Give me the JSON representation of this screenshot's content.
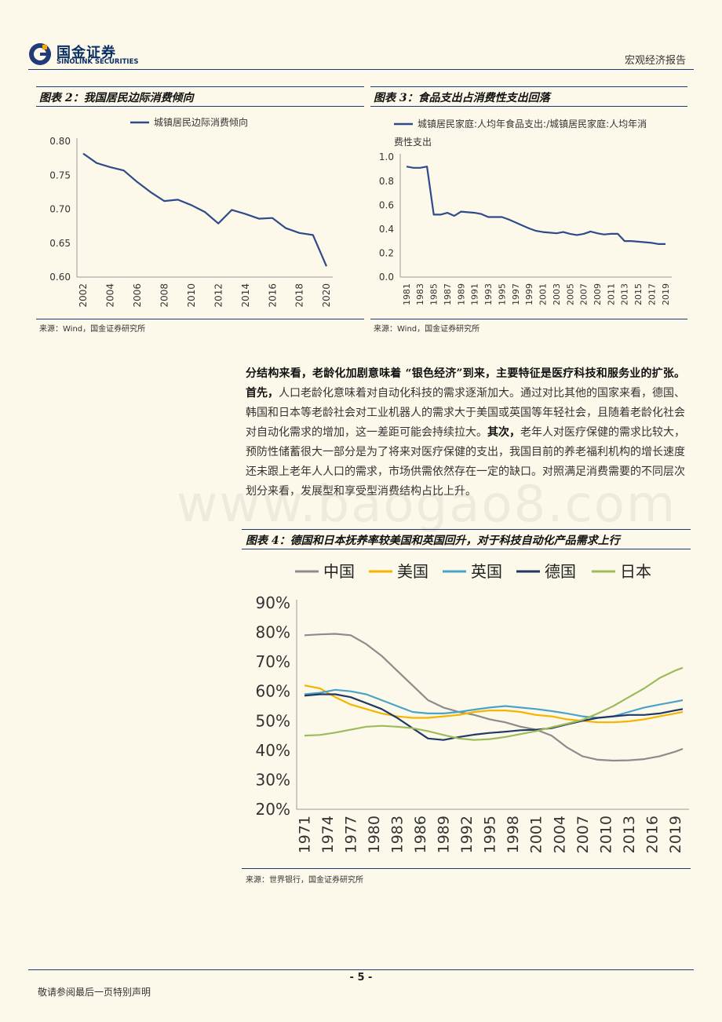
{
  "header": {
    "logo_cn": "国金证券",
    "logo_en": "SINOLINK SECURITIES",
    "report_type": "宏观经济报告"
  },
  "figures": {
    "fig2": {
      "title": "图表 2：我国居民边际消费倾向",
      "source": "来源：Wind，国金证券研究所"
    },
    "fig3": {
      "title": "图表 3：食品支出占消费性支出回落",
      "source": "来源：Wind，国金证券研究所"
    },
    "fig4": {
      "title": "图表 4：德国和日本抚养率较美国和英国回升，对于科技自动化产品需求上行",
      "source": "来源：世界银行，国金证券研究所"
    }
  },
  "body": {
    "b1": "分结构来看，老龄化加剧意味着 “银色经济”到来，主要特征是医疗科技和服务业的扩张。",
    "b2": "首先，",
    "t1": "人口老龄化意味着对自动化科技的需求逐渐加大。通过对比其他的国家来看，德国、韩国和日本等老龄社会对工业机器人的需求大于美国或英国等年轻社会，且随着老龄化社会对自动化需求的增加，这一差距可能会持续拉大。",
    "b3": "其次，",
    "t2": "老年人对医疗保健的需求比较大，预防性储蓄很大一部分是为了将来对医疗保健的支出，我国目前的养老福利机构的增长速度还未跟上老年人人口的需求，市场供需依然存在一定的缺口。对照满足消费需要的不同层次划分来看，发展型和享受型消费结构占比上升。"
  },
  "watermark": "www.baogao8.com",
  "footer": {
    "page": "- 5 -",
    "notice": "敬请参阅最后一页特别声明"
  },
  "chart_data": [
    {
      "type": "line",
      "id": "fig2",
      "series": [
        {
          "name": "城镇居民边际消费倾向",
          "color": "#2e4b8a",
          "x": [
            2002,
            2003,
            2004,
            2005,
            2006,
            2007,
            2008,
            2009,
            2010,
            2011,
            2012,
            2013,
            2014,
            2015,
            2016,
            2017,
            2018,
            2019,
            2020
          ],
          "values": [
            0.782,
            0.768,
            0.762,
            0.757,
            0.74,
            0.725,
            0.712,
            0.714,
            0.706,
            0.696,
            0.679,
            0.699,
            0.693,
            0.686,
            0.687,
            0.672,
            0.665,
            0.662,
            0.616
          ]
        }
      ],
      "ylim": [
        0.6,
        0.8
      ],
      "yticks": [
        "0.80",
        "0.75",
        "0.70",
        "0.65",
        "0.60"
      ],
      "xticks": [
        "2002",
        "2004",
        "2006",
        "2008",
        "2010",
        "2012",
        "2014",
        "2016",
        "2018",
        "2020"
      ]
    },
    {
      "type": "line",
      "id": "fig3",
      "series": [
        {
          "name": "城镇居民家庭:人均年食品支出:/城镇居民家庭:人均年消费性支出",
          "legend_lines": [
            "城镇居民家庭:人均年食品支出:/城镇居民家庭:人均年消",
            "费性支出"
          ],
          "color": "#2e4b8a",
          "x": [
            1981,
            1982,
            1983,
            1984,
            1985,
            1986,
            1987,
            1988,
            1989,
            1990,
            1991,
            1992,
            1993,
            1994,
            1995,
            1996,
            1997,
            1998,
            1999,
            2000,
            2001,
            2002,
            2003,
            2004,
            2005,
            2006,
            2007,
            2008,
            2009,
            2010,
            2011,
            2012,
            2013,
            2014,
            2015,
            2016,
            2017,
            2018,
            2019
          ],
          "values": [
            0.92,
            0.91,
            0.91,
            0.92,
            0.52,
            0.52,
            0.535,
            0.51,
            0.545,
            0.54,
            0.535,
            0.525,
            0.5,
            0.5,
            0.5,
            0.48,
            0.455,
            0.43,
            0.405,
            0.385,
            0.375,
            0.37,
            0.365,
            0.375,
            0.36,
            0.35,
            0.36,
            0.38,
            0.365,
            0.355,
            0.36,
            0.36,
            0.3,
            0.3,
            0.295,
            0.29,
            0.285,
            0.275,
            0.275
          ]
        }
      ],
      "ylim": [
        0.0,
        1.0
      ],
      "yticks": [
        "1.0",
        "0.8",
        "0.6",
        "0.4",
        "0.2",
        "0.0"
      ],
      "xticks": [
        "1981",
        "1983",
        "1985",
        "1987",
        "1989",
        "1991",
        "1993",
        "1995",
        "1997",
        "1999",
        "2001",
        "2003",
        "2005",
        "2007",
        "2009",
        "2011",
        "2013",
        "2015",
        "2017",
        "2019"
      ]
    },
    {
      "type": "line",
      "id": "fig4",
      "x": [
        1971,
        1973,
        1975,
        1977,
        1979,
        1981,
        1983,
        1985,
        1987,
        1989,
        1991,
        1993,
        1995,
        1997,
        1999,
        2001,
        2003,
        2005,
        2007,
        2009,
        2011,
        2013,
        2015,
        2017,
        2019,
        2020
      ],
      "series": [
        {
          "name": "中国",
          "color": "#8c8c8c",
          "values": [
            79,
            79.3,
            79.5,
            79,
            76,
            72,
            67,
            62,
            57,
            54.5,
            53,
            52,
            50.5,
            49.5,
            48,
            47,
            45,
            41,
            38,
            36.8,
            36.5,
            36.6,
            37,
            38,
            39.5,
            40.5
          ]
        },
        {
          "name": "美国",
          "color": "#f5b400",
          "values": [
            62,
            61,
            58,
            55.5,
            54,
            52.5,
            51.5,
            51,
            51,
            51.5,
            52,
            53,
            53.5,
            53.5,
            53,
            52,
            51.5,
            50.5,
            50,
            49.5,
            49.5,
            49.8,
            50.5,
            51.5,
            52.5,
            53
          ]
        },
        {
          "name": "英国",
          "color": "#4aa3c8",
          "values": [
            59,
            59.5,
            60.5,
            60,
            59,
            57,
            55,
            53,
            52.5,
            52.5,
            53,
            53.8,
            54.5,
            55,
            54.5,
            54,
            53.3,
            52.5,
            51.5,
            51,
            51.5,
            53,
            54.5,
            55.5,
            56.5,
            57
          ]
        },
        {
          "name": "德国",
          "color": "#1f3864",
          "values": [
            58.5,
            59,
            59,
            58,
            56,
            54,
            51,
            47.5,
            44,
            43.5,
            44.5,
            45.3,
            45.9,
            46.3,
            46.8,
            47,
            47.5,
            48.8,
            50,
            51,
            51.5,
            52,
            52,
            52.5,
            53.5,
            54
          ]
        },
        {
          "name": "日本",
          "color": "#9dbb5a",
          "values": [
            45,
            45.2,
            46,
            47,
            48,
            48.3,
            48,
            47.5,
            46.5,
            45.2,
            44,
            43.5,
            43.8,
            44.5,
            45.5,
            46.5,
            47.8,
            49,
            50.3,
            52.5,
            55,
            58,
            61,
            64.5,
            67,
            68
          ]
        }
      ],
      "ylim": [
        20,
        90
      ],
      "yticks": [
        "90%",
        "80%",
        "70%",
        "60%",
        "50%",
        "40%",
        "30%",
        "20%"
      ],
      "xticks": [
        "1971",
        "1974",
        "1977",
        "1980",
        "1983",
        "1986",
        "1989",
        "1992",
        "1995",
        "1998",
        "2001",
        "2004",
        "2007",
        "2010",
        "2013",
        "2016",
        "2019"
      ]
    }
  ]
}
